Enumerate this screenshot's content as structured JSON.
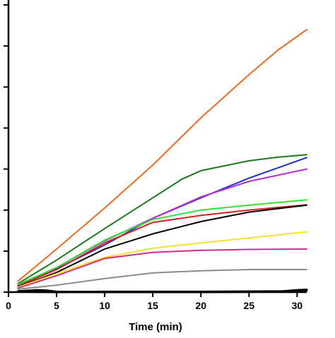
{
  "chart_data": {
    "type": "line",
    "title": "",
    "xlabel": "Time (min)",
    "ylabel": "",
    "xlim": [
      0,
      31
    ],
    "ylim": [
      0,
      7
    ],
    "xticks": [
      0,
      5,
      10,
      15,
      20,
      25,
      30
    ],
    "yticks": [
      0,
      1,
      2,
      3,
      4,
      5,
      6,
      7
    ],
    "grid": false,
    "legend": "none",
    "series": [
      {
        "color": "#F26B1D",
        "points": [
          [
            1,
            0.27
          ],
          [
            5,
            1.05
          ],
          [
            10,
            2.05
          ],
          [
            15,
            3.1
          ],
          [
            20,
            4.25
          ],
          [
            25,
            5.3
          ],
          [
            28,
            5.9
          ],
          [
            31,
            6.4
          ]
        ]
      },
      {
        "color": "#1A7A1A",
        "points": [
          [
            1,
            0.21
          ],
          [
            5,
            0.78
          ],
          [
            10,
            1.55
          ],
          [
            15,
            2.3
          ],
          [
            18,
            2.75
          ],
          [
            20,
            2.96
          ],
          [
            25,
            3.2
          ],
          [
            28,
            3.29
          ],
          [
            31,
            3.35
          ]
        ]
      },
      {
        "color": "#1F2FD4",
        "points": [
          [
            1,
            0.17
          ],
          [
            5,
            0.57
          ],
          [
            10,
            1.15
          ],
          [
            15,
            1.8
          ],
          [
            20,
            2.3
          ],
          [
            25,
            2.78
          ],
          [
            31,
            3.28
          ]
        ]
      },
      {
        "color": "#B62CD6",
        "points": [
          [
            1,
            0.15
          ],
          [
            5,
            0.6
          ],
          [
            10,
            1.25
          ],
          [
            15,
            1.8
          ],
          [
            20,
            2.32
          ],
          [
            25,
            2.7
          ],
          [
            31,
            3.0
          ]
        ]
      },
      {
        "color": "#33E133",
        "points": [
          [
            1,
            0.19
          ],
          [
            5,
            0.6
          ],
          [
            10,
            1.27
          ],
          [
            15,
            1.77
          ],
          [
            20,
            2.0
          ],
          [
            25,
            2.12
          ],
          [
            31,
            2.25
          ]
        ]
      },
      {
        "color": "#D42020",
        "points": [
          [
            1,
            0.15
          ],
          [
            5,
            0.55
          ],
          [
            10,
            1.2
          ],
          [
            15,
            1.7
          ],
          [
            20,
            1.87
          ],
          [
            25,
            2.0
          ],
          [
            31,
            2.13
          ]
        ]
      },
      {
        "color": "#000000",
        "points": [
          [
            1,
            0.13
          ],
          [
            5,
            0.48
          ],
          [
            10,
            1.05
          ],
          [
            15,
            1.42
          ],
          [
            20,
            1.72
          ],
          [
            25,
            1.95
          ],
          [
            31,
            2.12
          ]
        ]
      },
      {
        "color": "#F2E22E",
        "points": [
          [
            1,
            0.12
          ],
          [
            5,
            0.45
          ],
          [
            10,
            0.85
          ],
          [
            15,
            1.07
          ],
          [
            20,
            1.2
          ],
          [
            25,
            1.32
          ],
          [
            31,
            1.47
          ]
        ]
      },
      {
        "color": "#D62A8C",
        "points": [
          [
            1,
            0.1
          ],
          [
            5,
            0.4
          ],
          [
            10,
            0.82
          ],
          [
            15,
            0.97
          ],
          [
            20,
            1.02
          ],
          [
            25,
            1.04
          ],
          [
            31,
            1.05
          ]
        ]
      },
      {
        "color": "#8C8C8C",
        "points": [
          [
            1,
            0.07
          ],
          [
            5,
            0.17
          ],
          [
            10,
            0.33
          ],
          [
            15,
            0.47
          ],
          [
            20,
            0.52
          ],
          [
            25,
            0.55
          ],
          [
            31,
            0.55
          ]
        ]
      },
      {
        "color": "#000000",
        "points": [
          [
            1,
            0.02
          ],
          [
            3,
            0.05
          ],
          [
            4,
            0.04
          ],
          [
            5,
            0.01
          ],
          [
            10,
            0.0
          ],
          [
            20,
            0.0
          ],
          [
            28,
            0.01
          ],
          [
            30,
            0.05
          ],
          [
            31,
            0.06
          ]
        ]
      },
      {
        "color": "#000000",
        "points": [
          [
            1,
            0.01
          ],
          [
            5,
            0.0
          ],
          [
            10,
            0.01
          ],
          [
            20,
            0.01
          ],
          [
            29,
            0.02
          ],
          [
            31,
            0.04
          ]
        ]
      }
    ]
  }
}
